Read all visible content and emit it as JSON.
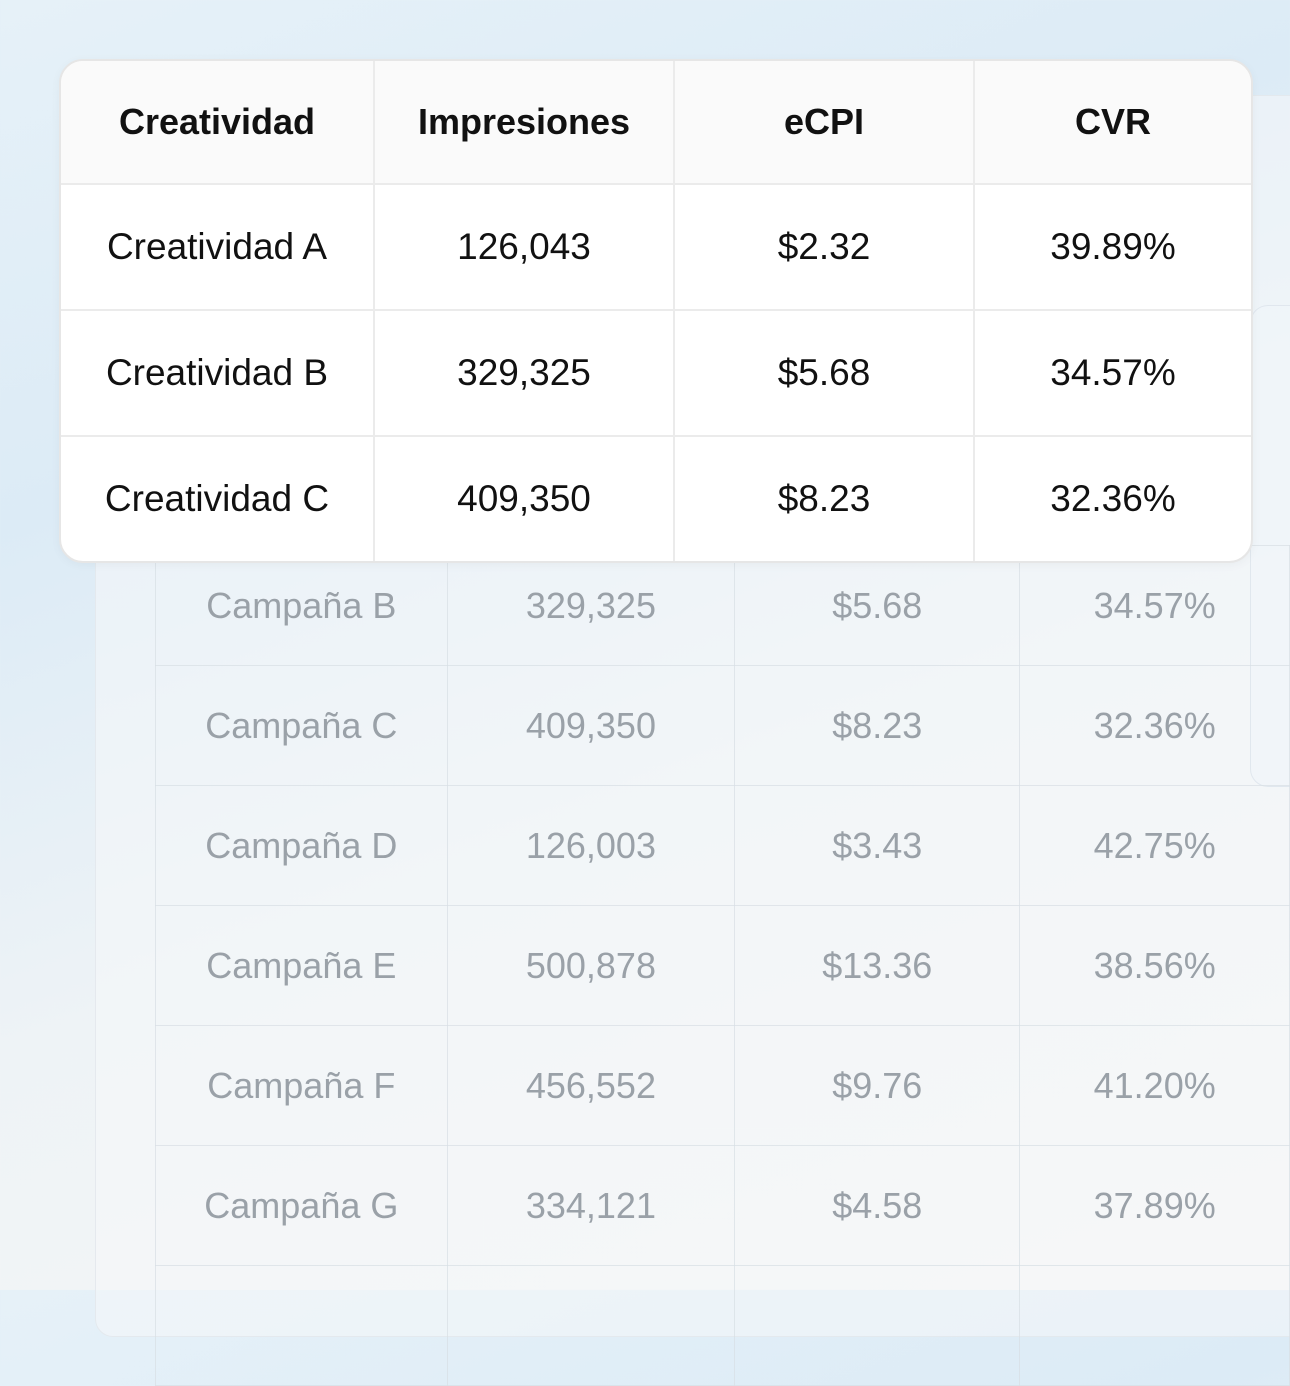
{
  "background_table": {
    "rows": [
      [
        "Campaña B",
        "329,325",
        "$5.68",
        "34.57%"
      ],
      [
        "Campaña C",
        "409,350",
        "$8.23",
        "32.36%"
      ],
      [
        "Campaña D",
        "126,003",
        "$3.43",
        "42.75%"
      ],
      [
        "Campaña E",
        "500,878",
        "$13.36",
        "38.56%"
      ],
      [
        "Campaña F",
        "456,552",
        "$9.76",
        "41.20%"
      ],
      [
        "Campaña G",
        "334,121",
        "$4.58",
        "37.89%"
      ],
      [
        "",
        "",
        "",
        ""
      ]
    ]
  },
  "table": {
    "headers": [
      "Creatividad",
      "Impresiones",
      "eCPI",
      "CVR"
    ],
    "rows": [
      [
        "Creatividad A",
        "126,043",
        "$2.32",
        "39.89%"
      ],
      [
        "Creatividad B",
        "329,325",
        "$5.68",
        "34.57%"
      ],
      [
        "Creatividad C",
        "409,350",
        "$8.23",
        "32.36%"
      ]
    ]
  }
}
